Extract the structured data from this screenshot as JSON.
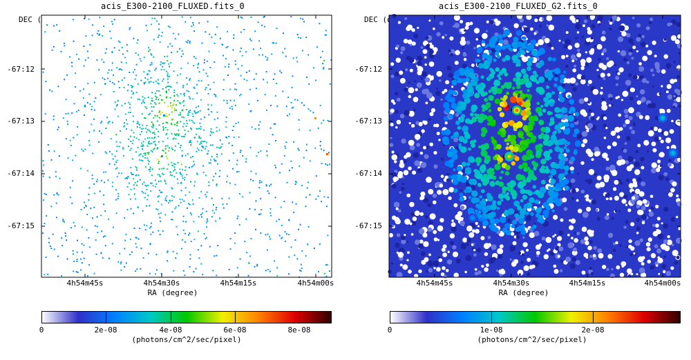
{
  "chart_data": [
    {
      "type": "heatmap",
      "title": "acis_E300-2100_FLUXED.fits_0",
      "ylabel": "DEC (degree)",
      "xlabel": "RA (degree)",
      "y_ticks": [
        "-67:12",
        "-67:13",
        "-67:14",
        "-67:15"
      ],
      "x_ticks": [
        "4h54m45s",
        "4h54m30s",
        "4h54m15s",
        "4h54m00s"
      ],
      "colorbar": {
        "ticks": [
          "0",
          "2e-08",
          "4e-08",
          "6e-08",
          "8e-08"
        ],
        "tick_values": [
          0,
          2e-08,
          4e-08,
          6e-08,
          8e-08
        ],
        "max": 8.9e-08,
        "unit": "(photons/cm^2/sec/pixel)",
        "colormap": [
          "#ffffff",
          "#3030c8",
          "#0080ff",
          "#00c8c8",
          "#00c800",
          "#f0f000",
          "#ff8000",
          "#e00000",
          "#300000"
        ]
      },
      "sources": [
        {
          "ra": "4h54m30s",
          "dec": "-67:12.9",
          "intensity": 2.6e-08
        },
        {
          "ra": "4h54m31s",
          "dec": "-67:13.7",
          "intensity": 2.8e-08
        },
        {
          "ra": "4h54m00s",
          "dec": "-67:12.95",
          "intensity": 6.5e-08
        },
        {
          "ra": "4h53m58s",
          "dec": "-67:13.65",
          "intensity": 7e-08
        }
      ]
    },
    {
      "type": "heatmap",
      "title": "acis_E300-2100_FLUXED_G2.fits_0",
      "ylabel": "DEC (degree)",
      "xlabel": "RA (degree)",
      "y_ticks": [
        "-67:12",
        "-67:13",
        "-67:14",
        "-67:15"
      ],
      "x_ticks": [
        "4h54m45s",
        "4h54m30s",
        "4h54m15s",
        "4h54m00s"
      ],
      "colorbar": {
        "ticks": [
          "0",
          "1e-08",
          "2e-08"
        ],
        "tick_values": [
          0,
          1e-08,
          2e-08
        ],
        "max": 2.85e-08,
        "unit": "(photons/cm^2/sec/pixel)",
        "colormap": [
          "#ffffff",
          "#3030c8",
          "#0080ff",
          "#00c8c8",
          "#00c800",
          "#f0f000",
          "#ff8000",
          "#e00000",
          "#300000"
        ]
      },
      "sources": [
        {
          "ra": "4h54m29s",
          "dec": "-67:12.8",
          "intensity": 2.2e-08
        },
        {
          "ra": "4h54m31s",
          "dec": "-67:13.7",
          "intensity": 1.9e-08
        },
        {
          "ra": "4h54m00s",
          "dec": "-67:12.95",
          "intensity": 1e-08
        },
        {
          "ra": "4h53m58s",
          "dec": "-67:13.65",
          "intensity": 1e-08
        },
        {
          "ra": "4h54m37s",
          "dec": "-67:14.8",
          "intensity": 8e-09
        }
      ]
    }
  ]
}
